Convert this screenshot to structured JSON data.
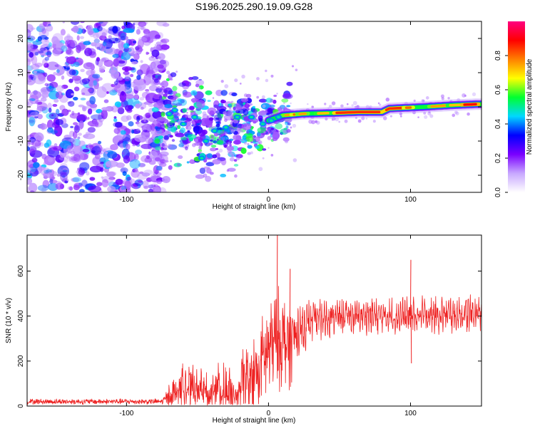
{
  "title": "S196.2025.290.19.09.G28",
  "chart_data": [
    {
      "type": "heatmap",
      "name": "spectrogram",
      "xlabel": "Height of straight line (km)",
      "ylabel": "Frequency (Hz)",
      "xlim": [
        -170,
        150
      ],
      "ylim": [
        -25,
        25
      ],
      "xticks": [
        -100,
        0,
        100
      ],
      "yticks": [
        -20,
        -10,
        0,
        10,
        20
      ],
      "colorbar": {
        "label": "Normalized spectral amplitude",
        "range": [
          0,
          1
        ],
        "ticks": [
          0.0,
          0.2,
          0.4,
          0.6,
          0.8
        ],
        "tick_labels": [
          "0.0",
          "0.2",
          "0.4",
          "0.6",
          "0.8"
        ],
        "colormap_stops": [
          "#ffffff",
          "#c8a8ff",
          "#7a00ff",
          "#0000ff",
          "#00d8ff",
          "#00ff30",
          "#ffff00",
          "#ff8000",
          "#ff0000",
          "#ff0080"
        ]
      },
      "ridge": [
        {
          "x": -60,
          "f": -3
        },
        {
          "x": -45,
          "f": -8
        },
        {
          "x": -30,
          "f": -6
        },
        {
          "x": -15,
          "f": -5
        },
        {
          "x": 0,
          "f": -4
        },
        {
          "x": 10,
          "f": -2.5
        },
        {
          "x": 25,
          "f": -2
        },
        {
          "x": 45,
          "f": -1.8
        },
        {
          "x": 65,
          "f": -1.5
        },
        {
          "x": 80,
          "f": -1.5
        },
        {
          "x": 85,
          "f": -0.5
        },
        {
          "x": 110,
          "f": 0
        },
        {
          "x": 130,
          "f": 0.5
        },
        {
          "x": 148,
          "f": 0.8
        }
      ],
      "noise_region_x": [
        -170,
        -80
      ]
    },
    {
      "type": "line",
      "name": "snr",
      "xlabel": "Height of straight line (km)",
      "ylabel": "SNR (10 * v/v)",
      "xlim": [
        -170,
        150
      ],
      "ylim": [
        0,
        760
      ],
      "xticks": [
        -100,
        0,
        100
      ],
      "yticks": [
        0,
        200,
        400,
        600
      ],
      "color": "#ee2020",
      "envelope": [
        {
          "x": -170,
          "level": 20,
          "amp": 15
        },
        {
          "x": -75,
          "level": 20,
          "amp": 15
        },
        {
          "x": -68,
          "level": 50,
          "amp": 80
        },
        {
          "x": -60,
          "level": 90,
          "amp": 120
        },
        {
          "x": -50,
          "level": 80,
          "amp": 110
        },
        {
          "x": -45,
          "level": 60,
          "amp": 100
        },
        {
          "x": -30,
          "level": 80,
          "amp": 150
        },
        {
          "x": -22,
          "level": 30,
          "amp": 40
        },
        {
          "x": -18,
          "level": 120,
          "amp": 180
        },
        {
          "x": -8,
          "level": 150,
          "amp": 200
        },
        {
          "x": 0,
          "level": 250,
          "amp": 280
        },
        {
          "x": 8,
          "level": 300,
          "amp": 260
        },
        {
          "x": 15,
          "level": 280,
          "amp": 250
        },
        {
          "x": 20,
          "level": 330,
          "amp": 120
        },
        {
          "x": 30,
          "level": 380,
          "amp": 90
        },
        {
          "x": 50,
          "level": 400,
          "amp": 80
        },
        {
          "x": 100,
          "level": 400,
          "amp": 80
        },
        {
          "x": 148,
          "level": 410,
          "amp": 85
        }
      ],
      "spikes": [
        {
          "x": 6,
          "y": 760
        },
        {
          "x": 15,
          "y": 610
        },
        {
          "x": 100,
          "y": 650
        },
        {
          "x": 100.4,
          "y": 190
        }
      ]
    }
  ]
}
